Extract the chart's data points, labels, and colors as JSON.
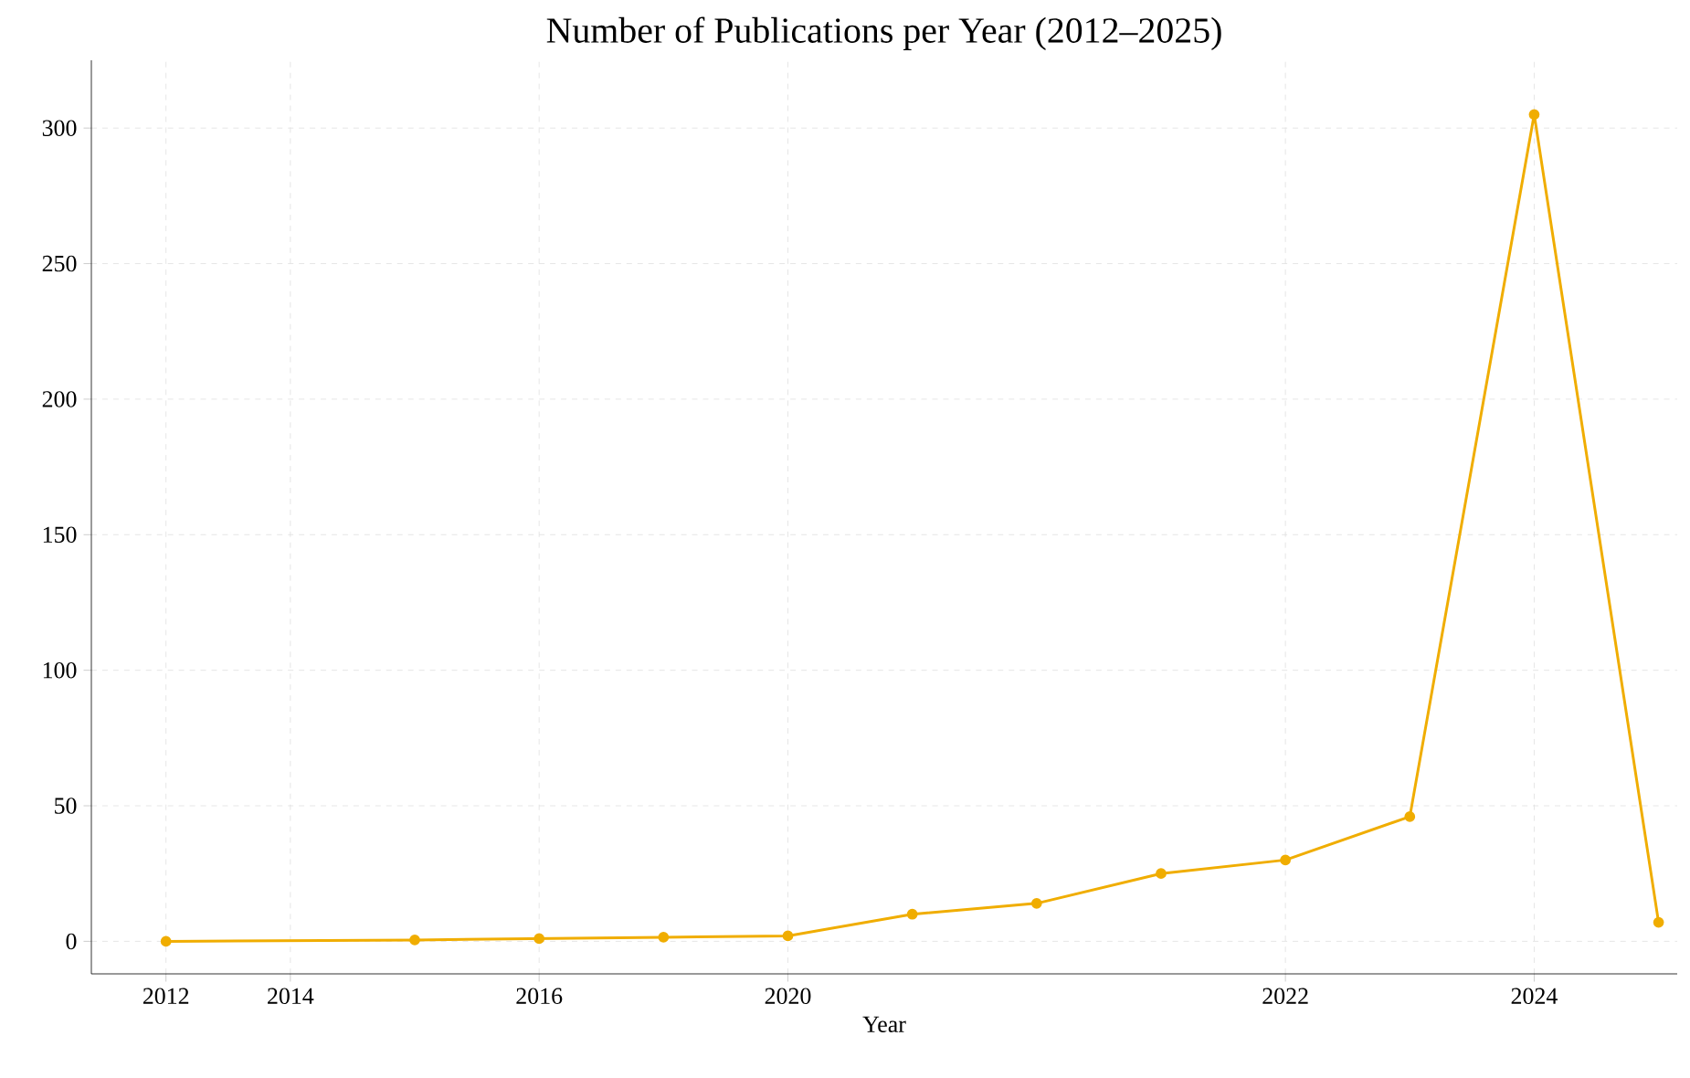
{
  "chart_data": {
    "type": "line",
    "title": "Number of Publications per Year (2012–2025)",
    "xlabel": "Year",
    "categories": [
      "2012",
      "2014",
      null,
      "2016",
      null,
      "2020",
      null,
      null,
      null,
      "2022",
      null,
      "2024",
      null
    ],
    "series": [
      {
        "color": "#f0ad00",
        "values": [
          0,
          null,
          0.5,
          1,
          1.5,
          2,
          10,
          14,
          25,
          30,
          46,
          305,
          7
        ]
      }
    ],
    "ylim": [
      -12,
      325
    ],
    "yticks": [
      0,
      50,
      100,
      150,
      200,
      250,
      300
    ],
    "grid": true,
    "marker": "circle",
    "line_style": "solid"
  }
}
